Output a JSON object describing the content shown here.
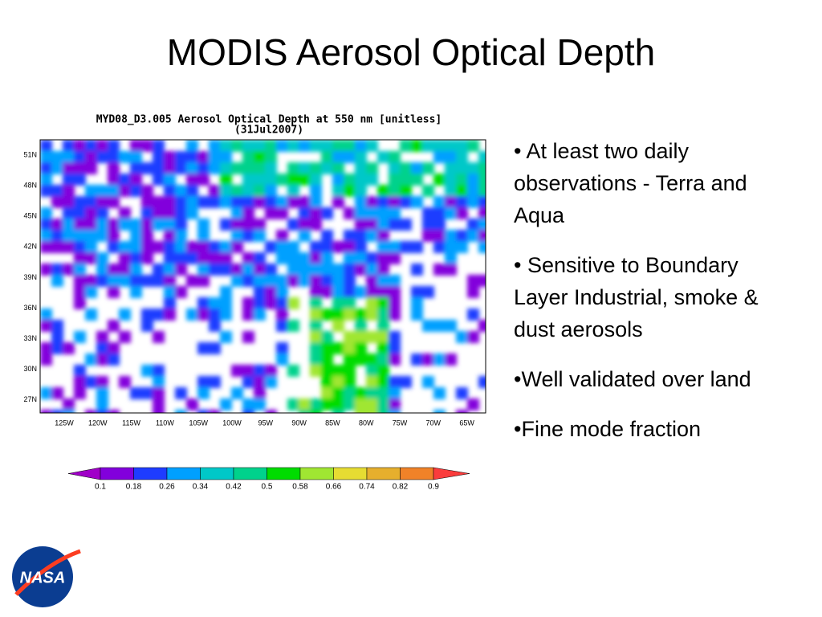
{
  "title": "MODIS Aerosol Optical Depth",
  "map": {
    "title": "MYD08_D3.005 Aerosol Optical Depth at 550 nm [unitless]",
    "date": "(31Jul2007)",
    "lat_labels": [
      "51N",
      "48N",
      "45N",
      "42N",
      "39N",
      "36N",
      "33N",
      "30N",
      "27N"
    ],
    "lon_labels": [
      "125W",
      "120W",
      "115W",
      "110W",
      "105W",
      "100W",
      "95W",
      "90W",
      "85W",
      "80W",
      "75W",
      "70W",
      "65W"
    ],
    "colorbar": {
      "labels": [
        "0.1",
        "0.18",
        "0.26",
        "0.34",
        "0.42",
        "0.5",
        "0.58",
        "0.66",
        "0.74",
        "0.82",
        "0.9"
      ],
      "colors": [
        "#a000c8",
        "#8200dc",
        "#1e3cff",
        "#00a0ff",
        "#00c8c8",
        "#00d28c",
        "#00dc00",
        "#a0e632",
        "#e6dc32",
        "#e6af2d",
        "#f08228",
        "#fa3c3c"
      ]
    }
  },
  "bullets": [
    "• At least two daily observations - Terra and Aqua",
    "•  Sensitive to Boundary Layer Industrial, smoke & dust aerosols",
    "•Well validated over land",
    "•Fine mode fraction"
  ],
  "logo": "NASA"
}
